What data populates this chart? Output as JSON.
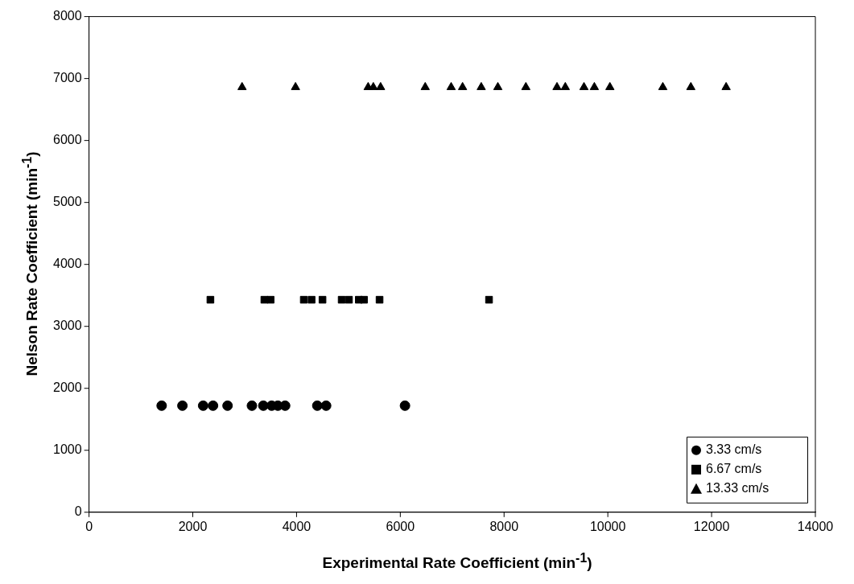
{
  "chart_data": {
    "type": "scatter",
    "xlabel": "Experimental Rate Coefficient (min$^{-1}$)",
    "ylabel": "Nelson Rate Coefficient (min$^{-1}$)",
    "xlim": [
      0,
      14000
    ],
    "xticks": [
      0,
      2000,
      4000,
      6000,
      8000,
      10000,
      12000,
      14000
    ],
    "ylim": [
      0,
      8000
    ],
    "yticks": [
      0,
      1000,
      2000,
      3000,
      4000,
      5000,
      6000,
      7000,
      8000
    ],
    "grid": false,
    "legend": "bottom right",
    "series": [
      {
        "name": "3.33 cm/s",
        "color": "#000000",
        "marker": "circle",
        "x": [
          1400,
          1800,
          2200,
          2390,
          2670,
          3140,
          3360,
          3520,
          3640,
          3780,
          4400,
          4570,
          6090
        ],
        "values": [
          1720,
          1720,
          1720,
          1720,
          1720,
          1720,
          1720,
          1720,
          1720,
          1720,
          1720,
          1720,
          1720
        ]
      },
      {
        "name": "6.67 cm/s",
        "color": "#000000",
        "marker": "square",
        "x": [
          2340,
          3380,
          3500,
          4140,
          4290,
          4500,
          4870,
          5010,
          5200,
          5300,
          5600,
          7710
        ],
        "values": [
          3430,
          3430,
          3430,
          3430,
          3430,
          3430,
          3430,
          3430,
          3430,
          3430,
          3430,
          3430
        ]
      },
      {
        "name": "13.33 cm/s",
        "color": "#000000",
        "marker": "triangle",
        "x": [
          2950,
          3980,
          5380,
          5480,
          5620,
          6480,
          6980,
          7200,
          7560,
          7880,
          8420,
          9020,
          9180,
          9540,
          9740,
          10040,
          11060,
          11600,
          12280
        ],
        "values": [
          6860,
          6860,
          6860,
          6860,
          6860,
          6860,
          6860,
          6860,
          6860,
          6860,
          6860,
          6860,
          6860,
          6860,
          6860,
          6860,
          6860,
          6860,
          6860
        ]
      }
    ]
  }
}
